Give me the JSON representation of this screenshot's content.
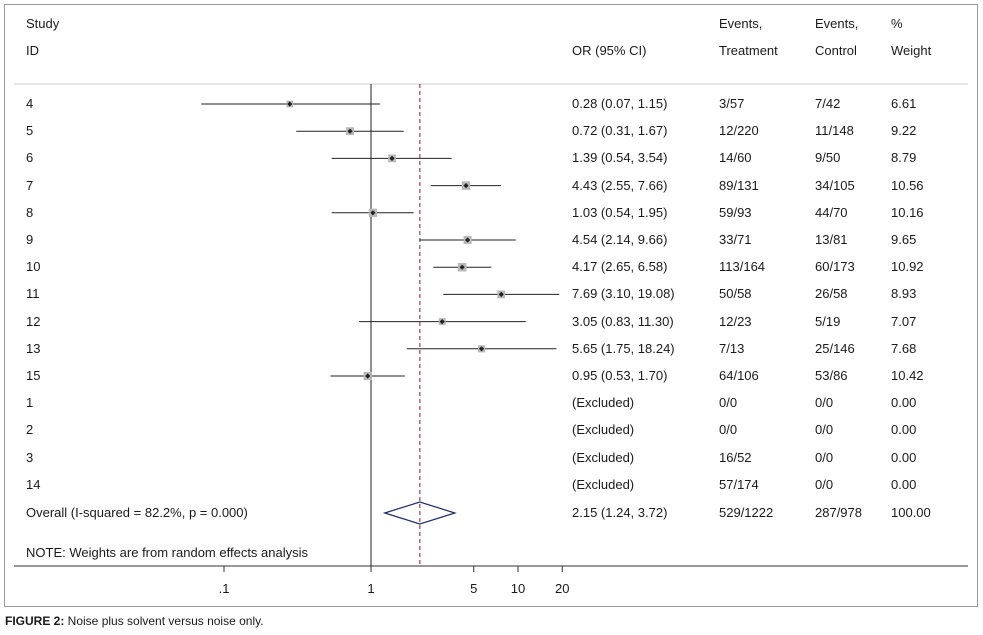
{
  "header": {
    "study_line1": "Study",
    "study_line2": "ID",
    "or_label": "OR (95% CI)",
    "events_t_line1": "Events,",
    "events_t_line2": "Treatment",
    "events_c_line1": "Events,",
    "events_c_line2": "Control",
    "weight_line1": "%",
    "weight_line2": "Weight"
  },
  "chart_data": {
    "type": "forest",
    "scale": "log",
    "x_ticks": [
      ".1",
      "1",
      "5",
      "10",
      "20"
    ],
    "x_tick_values": [
      0.1,
      1,
      5,
      10,
      20
    ],
    "null_line": 1,
    "overall_estimate_line": 2.15,
    "rows": [
      {
        "id": "4",
        "or": 0.28,
        "lo": 0.07,
        "hi": 1.15,
        "ci_text": "0.28 (0.07, 1.15)",
        "ev_t": "3/57",
        "ev_c": "7/42",
        "weight": "6.61",
        "w": 6.61
      },
      {
        "id": "5",
        "or": 0.72,
        "lo": 0.31,
        "hi": 1.67,
        "ci_text": "0.72 (0.31, 1.67)",
        "ev_t": "12/220",
        "ev_c": "11/148",
        "weight": "9.22",
        "w": 9.22
      },
      {
        "id": "6",
        "or": 1.39,
        "lo": 0.54,
        "hi": 3.54,
        "ci_text": "1.39 (0.54, 3.54)",
        "ev_t": "14/60",
        "ev_c": "9/50",
        "weight": "8.79",
        "w": 8.79
      },
      {
        "id": "7",
        "or": 4.43,
        "lo": 2.55,
        "hi": 7.66,
        "ci_text": "4.43 (2.55, 7.66)",
        "ev_t": "89/131",
        "ev_c": "34/105",
        "weight": "10.56",
        "w": 10.56
      },
      {
        "id": "8",
        "or": 1.03,
        "lo": 0.54,
        "hi": 1.95,
        "ci_text": "1.03 (0.54, 1.95)",
        "ev_t": "59/93",
        "ev_c": "44/70",
        "weight": "10.16",
        "w": 10.16
      },
      {
        "id": "9",
        "or": 4.54,
        "lo": 2.14,
        "hi": 9.66,
        "ci_text": "4.54 (2.14, 9.66)",
        "ev_t": "33/71",
        "ev_c": "13/81",
        "weight": "9.65",
        "w": 9.65
      },
      {
        "id": "10",
        "or": 4.17,
        "lo": 2.65,
        "hi": 6.58,
        "ci_text": "4.17 (2.65, 6.58)",
        "ev_t": "113/164",
        "ev_c": "60/173",
        "weight": "10.92",
        "w": 10.92
      },
      {
        "id": "11",
        "or": 7.69,
        "lo": 3.1,
        "hi": 19.08,
        "ci_text": "7.69 (3.10, 19.08)",
        "ev_t": "50/58",
        "ev_c": "26/58",
        "weight": "8.93",
        "w": 8.93
      },
      {
        "id": "12",
        "or": 3.05,
        "lo": 0.83,
        "hi": 11.3,
        "ci_text": "3.05 (0.83, 11.30)",
        "ev_t": "12/23",
        "ev_c": "5/19",
        "weight": "7.07",
        "w": 7.07
      },
      {
        "id": "13",
        "or": 5.65,
        "lo": 1.75,
        "hi": 18.24,
        "ci_text": "5.65 (1.75, 18.24)",
        "ev_t": "7/13",
        "ev_c": "25/146",
        "weight": "7.68",
        "w": 7.68
      },
      {
        "id": "15",
        "or": 0.95,
        "lo": 0.53,
        "hi": 1.7,
        "ci_text": "0.95 (0.53, 1.70)",
        "ev_t": "64/106",
        "ev_c": "53/86",
        "weight": "10.42",
        "w": 10.42
      },
      {
        "id": "1",
        "or": null,
        "lo": null,
        "hi": null,
        "ci_text": "(Excluded)",
        "ev_t": "0/0",
        "ev_c": "0/0",
        "weight": "0.00",
        "w": 0
      },
      {
        "id": "2",
        "or": null,
        "lo": null,
        "hi": null,
        "ci_text": "(Excluded)",
        "ev_t": "0/0",
        "ev_c": "0/0",
        "weight": "0.00",
        "w": 0
      },
      {
        "id": "3",
        "or": null,
        "lo": null,
        "hi": null,
        "ci_text": "(Excluded)",
        "ev_t": "16/52",
        "ev_c": "0/0",
        "weight": "0.00",
        "w": 0
      },
      {
        "id": "14",
        "or": null,
        "lo": null,
        "hi": null,
        "ci_text": "(Excluded)",
        "ev_t": "57/174",
        "ev_c": "0/0",
        "weight": "0.00",
        "w": 0
      }
    ],
    "overall": {
      "label": "Overall  (I-squared = 82.2%, p = 0.000)",
      "or": 2.15,
      "lo": 1.24,
      "hi": 3.72,
      "ci_text": "2.15 (1.24, 3.72)",
      "ev_t": "529/1222",
      "ev_c": "287/978",
      "weight": "100.00"
    },
    "note": "NOTE: Weights are from random effects analysis"
  },
  "caption": {
    "label": "FIGURE 2:",
    "text": " Noise plus solvent versus noise only."
  }
}
